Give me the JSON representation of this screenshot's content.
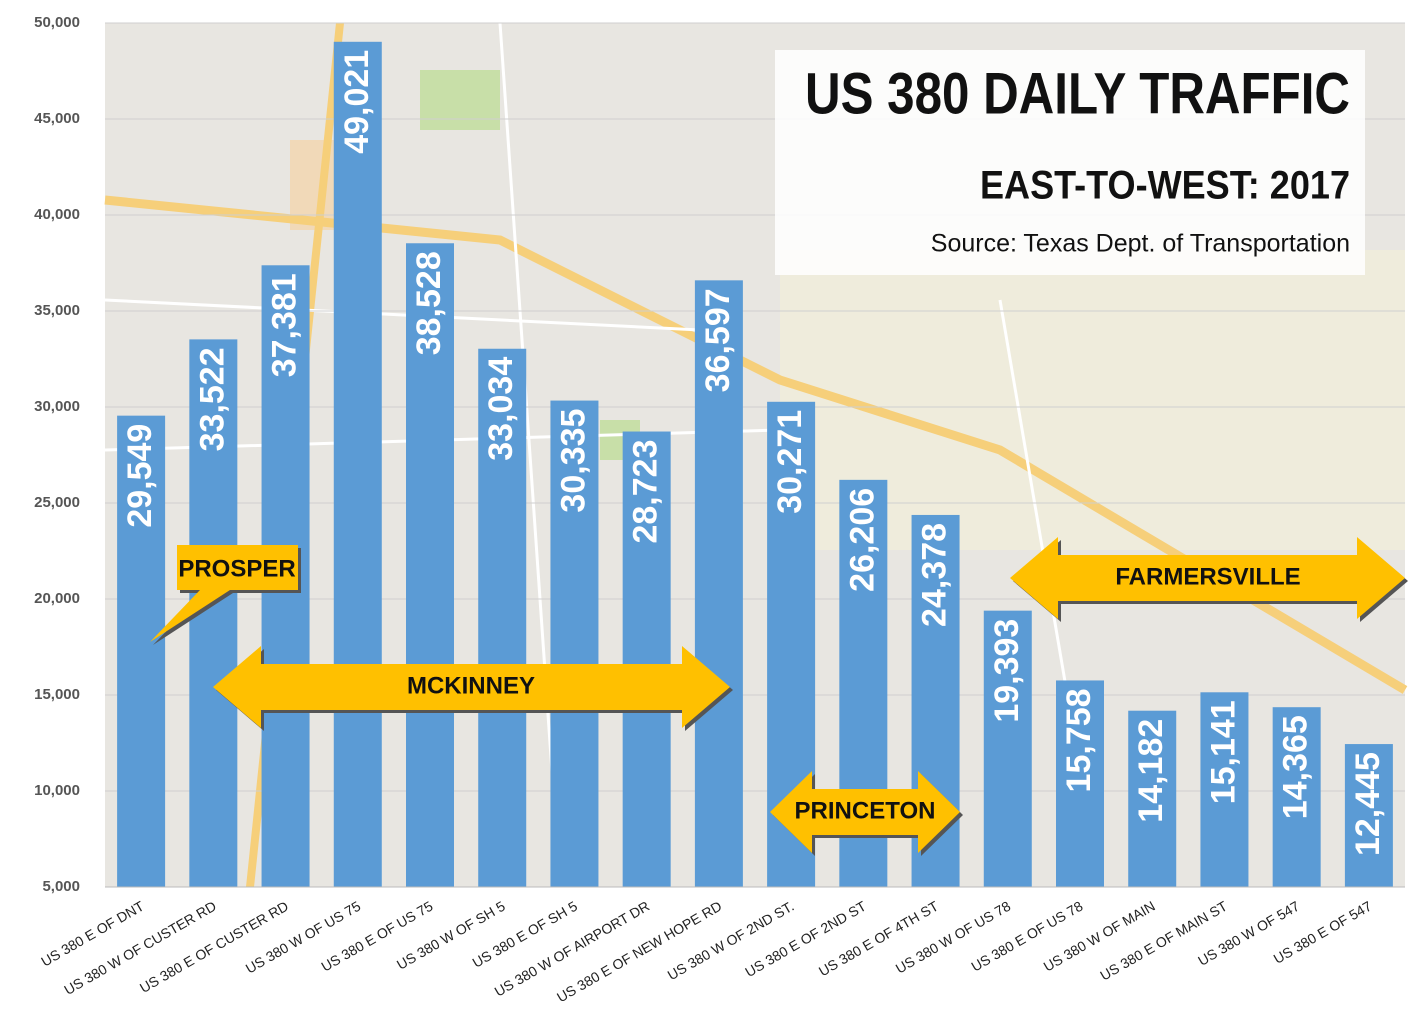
{
  "chart_data": {
    "type": "bar",
    "title": "US 380 DAILY TRAFFIC",
    "subtitle": "EAST-TO-WEST: 2017",
    "source": "Source: Texas Dept. of Transportation",
    "categories": [
      "US 380 E OF DNT",
      "US 380 W OF CUSTER RD",
      "US 380 E OF CUSTER RD",
      "US 380 W OF US 75",
      "US 380 E OF US 75",
      "US 380 W OF SH 5",
      "US 380 E OF SH 5",
      "US 380 W OF AIRPORT DR",
      "US 380 E OF NEW HOPE RD",
      "US 380 W OF 2ND ST.",
      "US 380 E OF 2ND ST",
      "US 380 E OF 4TH ST",
      "US 380 W OF US 78",
      "US 380 E OF US 78",
      "US 380 W OF MAIN",
      "US 380 E OF MAIN ST",
      "US 380 W OF 547",
      "US 380 E OF 547"
    ],
    "values": [
      29549,
      33522,
      37381,
      49021,
      38528,
      33034,
      30335,
      28723,
      36597,
      30271,
      26206,
      24378,
      19393,
      15758,
      14182,
      15141,
      14365,
      12445
    ],
    "value_labels": [
      "29,549",
      "33,522",
      "37,381",
      "49,021",
      "38,528",
      "33,034",
      "30,335",
      "28,723",
      "36,597",
      "30,271",
      "26,206",
      "24,378",
      "19,393",
      "15,758",
      "14,182",
      "15,141",
      "14,365",
      "12,445"
    ],
    "color": "#5b9bd5",
    "ylim": [
      5000,
      50000
    ],
    "yticks": [
      {
        "value": 5000,
        "label": "5,000"
      },
      {
        "value": 10000,
        "label": "10,000"
      },
      {
        "value": 15000,
        "label": "15,000"
      },
      {
        "value": 20000,
        "label": "20,000"
      },
      {
        "value": 25000,
        "label": "25,000"
      },
      {
        "value": 30000,
        "label": "30,000"
      },
      {
        "value": 35000,
        "label": "35,000"
      },
      {
        "value": 40000,
        "label": "40,000"
      },
      {
        "value": 45000,
        "label": "45,000"
      },
      {
        "value": 50000,
        "label": "50,000"
      }
    ],
    "grid": true,
    "annotations": [
      "PROSPER",
      "MCKINNEY",
      "PRINCETON",
      "FARMERSVILLE"
    ]
  }
}
